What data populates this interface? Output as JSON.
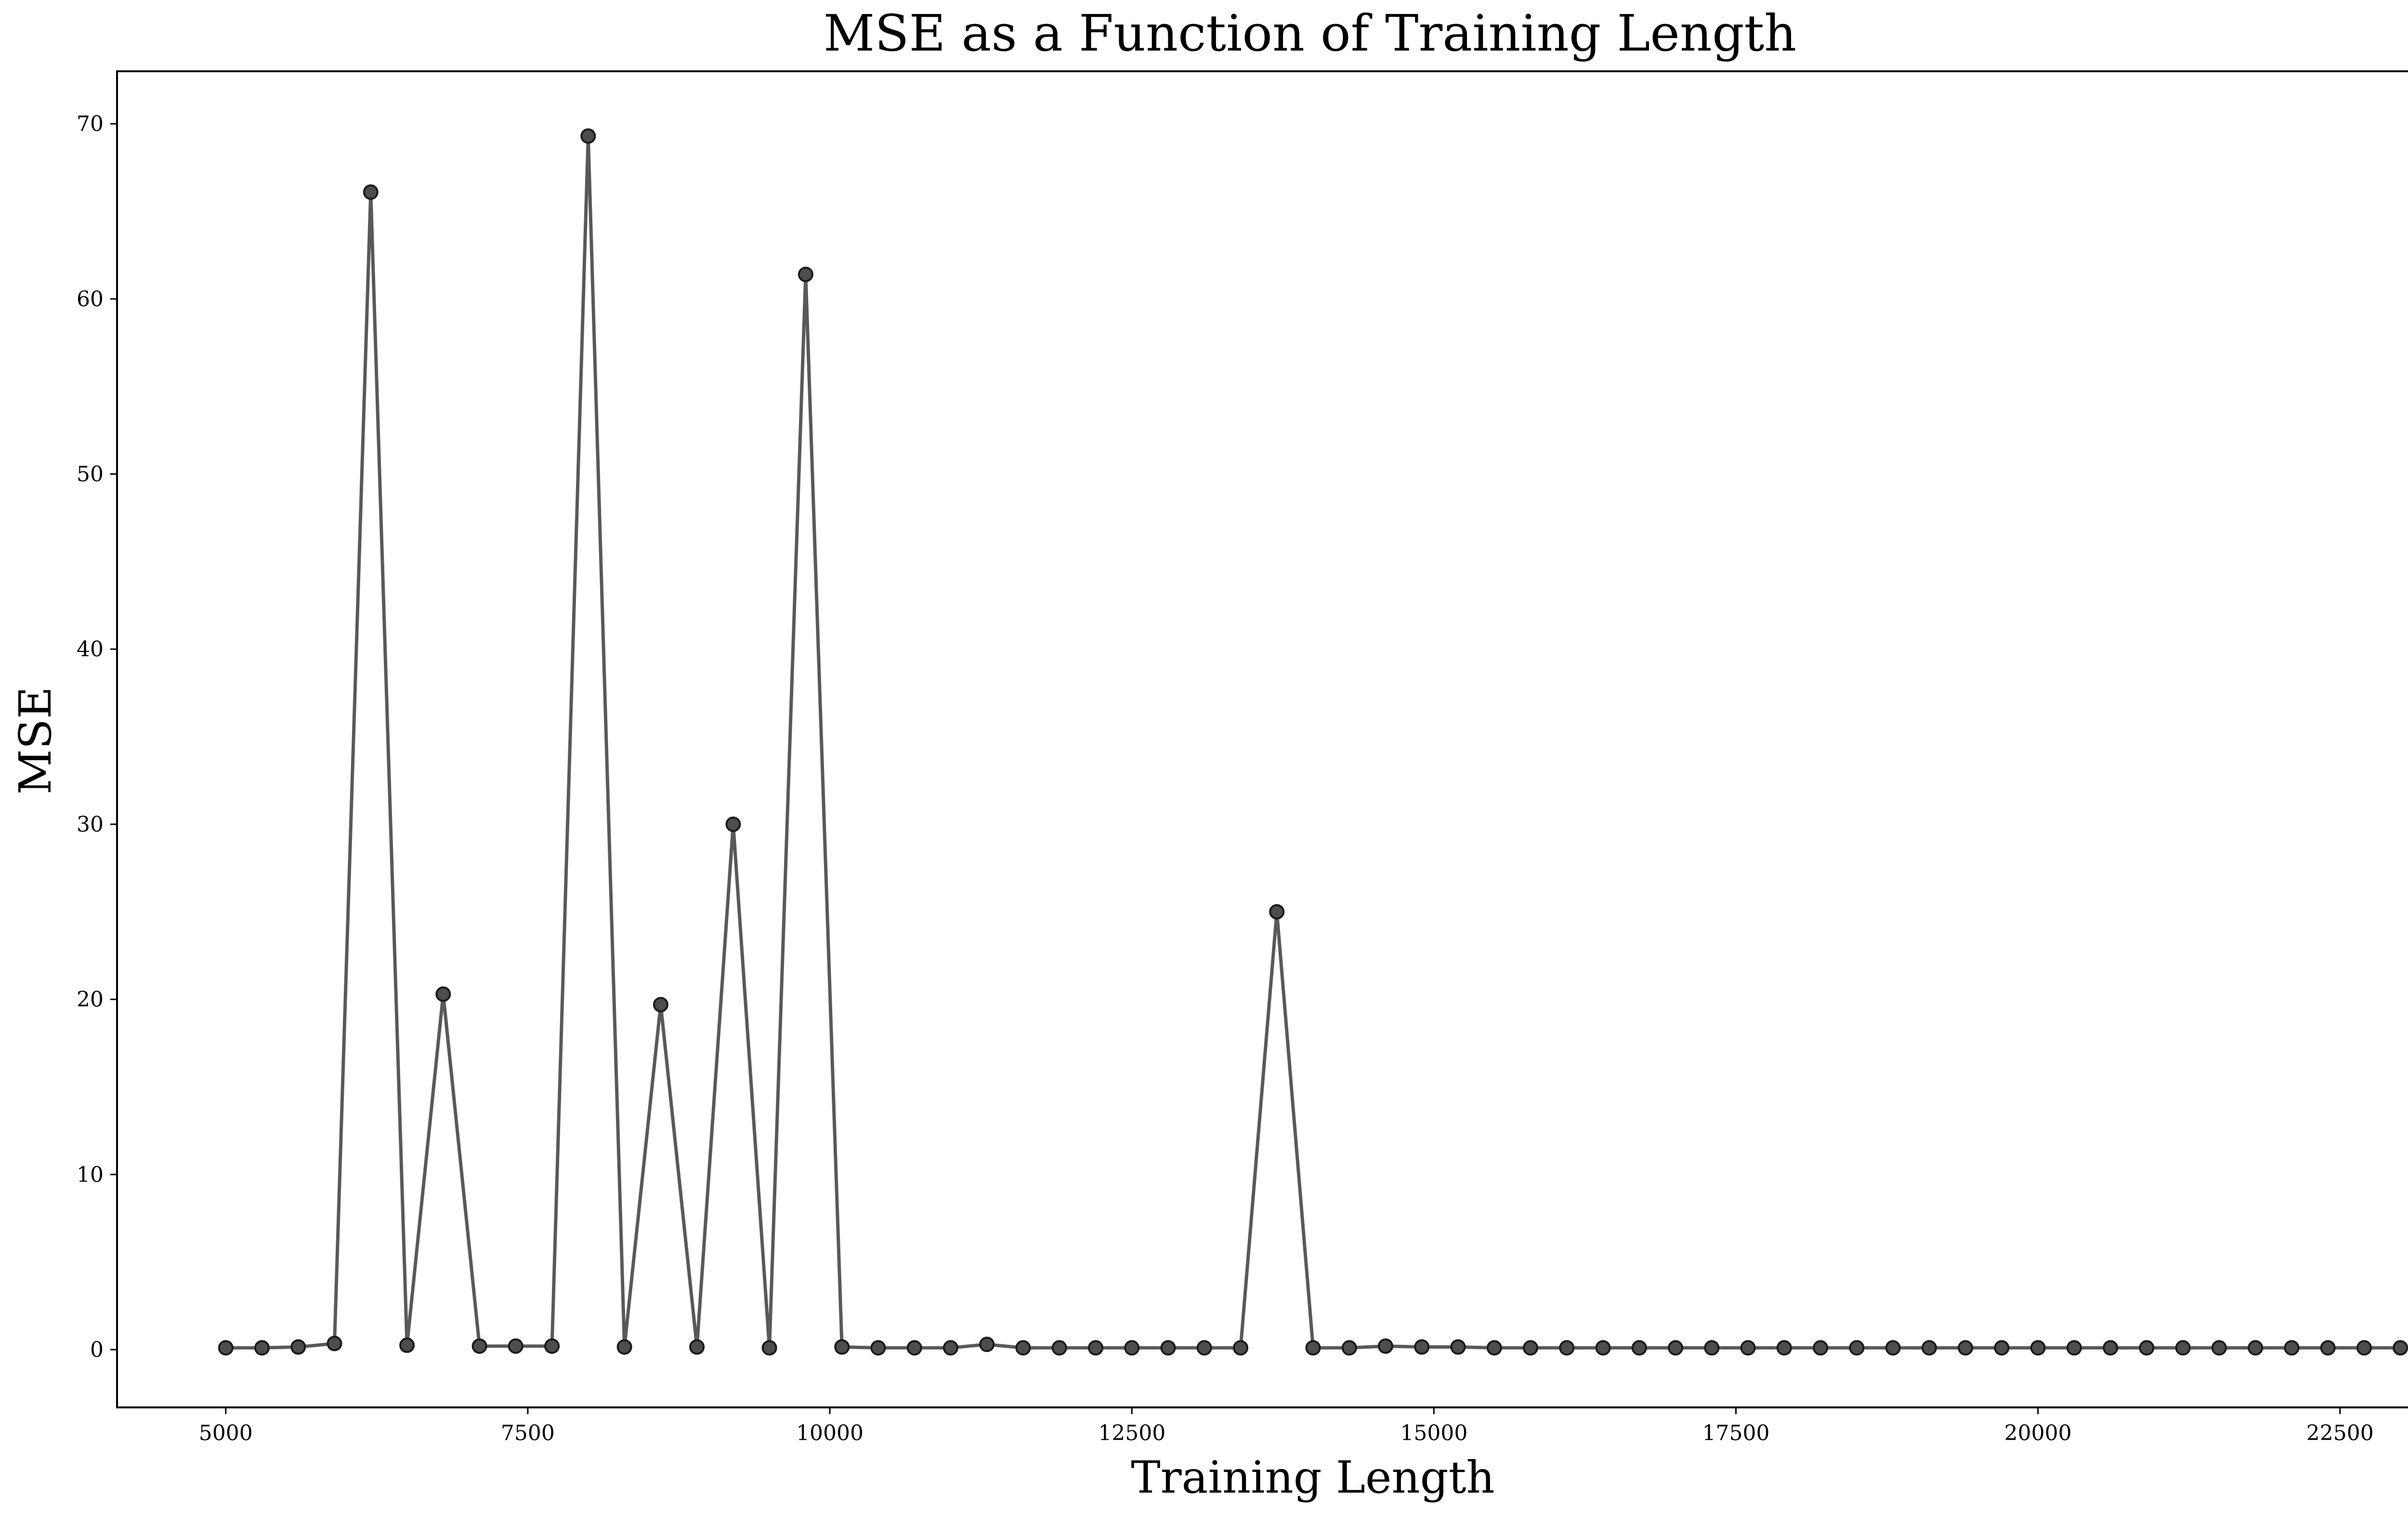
{
  "chart_data": {
    "type": "line",
    "title": "MSE as a Function of Training Length",
    "xlabel": "Training Length",
    "ylabel": "MSE",
    "xlim": [
      4100,
      23900
    ],
    "ylim": [
      -3.3,
      73
    ],
    "xticks": [
      5000,
      7500,
      10000,
      12500,
      15000,
      17500,
      20000,
      22500
    ],
    "yticks": [
      0,
      10,
      20,
      30,
      40,
      50,
      60,
      70
    ],
    "grid": false,
    "legend": "none",
    "series": [
      {
        "line_color": "#595959",
        "marker_fill": "#4d4d4d",
        "marker_edge": "#1a1a1a",
        "x": [
          5000,
          5300,
          5600,
          5900,
          6200,
          6500,
          6800,
          7100,
          7400,
          7700,
          8000,
          8300,
          8600,
          8900,
          9200,
          9500,
          9800,
          10100,
          10400,
          10700,
          11000,
          11300,
          11600,
          11900,
          12200,
          12500,
          12800,
          13100,
          13400,
          13700,
          14000,
          14300,
          14600,
          14900,
          15200,
          15500,
          15800,
          16100,
          16400,
          16700,
          17000,
          17300,
          17600,
          17900,
          18200,
          18500,
          18800,
          19100,
          19400,
          19700,
          20000,
          20300,
          20600,
          20900,
          21200,
          21500,
          21800,
          22100,
          22400,
          22700,
          23000
        ],
        "y": [
          0.1,
          0.1,
          0.15,
          0.35,
          66.1,
          0.25,
          20.3,
          0.2,
          0.2,
          0.2,
          69.3,
          0.15,
          19.7,
          0.15,
          30.0,
          0.1,
          61.4,
          0.15,
          0.1,
          0.1,
          0.1,
          0.3,
          0.1,
          0.1,
          0.1,
          0.1,
          0.1,
          0.1,
          0.1,
          25.0,
          0.1,
          0.1,
          0.2,
          0.15,
          0.15,
          0.1,
          0.1,
          0.1,
          0.1,
          0.1,
          0.1,
          0.1,
          0.1,
          0.1,
          0.1,
          0.1,
          0.1,
          0.1,
          0.1,
          0.1,
          0.1,
          0.1,
          0.1,
          0.1,
          0.1,
          0.1,
          0.1,
          0.1,
          0.1,
          0.1,
          0.1
        ]
      }
    ]
  }
}
